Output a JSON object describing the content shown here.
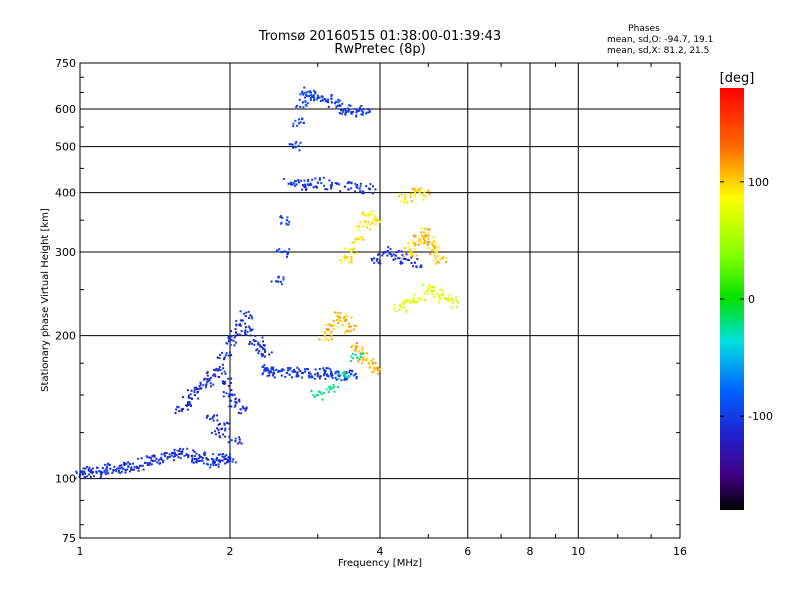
{
  "chart_data": {
    "type": "scatter",
    "title": "Tromsø 20160515 01:38:00-01:39:43",
    "subtitle": "RwPretec (8p)",
    "xlabel": "Frequency [MHz]",
    "ylabel": "Stationary phase Virtual Height [km]",
    "x_scale": "log",
    "y_scale": "log",
    "xlim": [
      1,
      16
    ],
    "ylim": [
      75,
      750
    ],
    "x_ticks": [
      1,
      2,
      4,
      6,
      8,
      10,
      16
    ],
    "y_ticks": [
      75,
      100,
      200,
      300,
      400,
      500,
      600,
      750
    ],
    "grid": true,
    "stats_title": "Phases",
    "stats_lines": [
      "mean, sd,O: -94.7, 19.1",
      "mean, sd,X:  81.2, 21.5"
    ],
    "colorbar": {
      "label": "[deg]",
      "range": [
        -180,
        180
      ],
      "ticks": [
        100,
        0,
        -100
      ]
    },
    "series": [
      {
        "color_value": -105,
        "x": [
          1.0,
          1.02,
          1.05,
          1.08,
          1.12,
          1.15,
          1.18,
          1.22,
          1.25,
          1.3,
          1.35,
          1.4,
          1.45,
          1.5,
          1.55,
          1.6,
          1.65,
          1.7,
          1.75,
          1.8,
          1.85,
          1.9,
          1.95,
          2.0
        ],
        "y": [
          102,
          103,
          104,
          103,
          104,
          105,
          104,
          105,
          106,
          106,
          108,
          109,
          110,
          111,
          113,
          114,
          112,
          110,
          111,
          110,
          108,
          109,
          110,
          110
        ]
      },
      {
        "color_value": -110,
        "x": [
          1.6,
          1.65,
          1.7,
          1.75,
          1.8,
          1.85,
          1.9,
          1.95,
          2.0,
          2.05,
          2.1,
          1.9,
          1.85,
          1.95,
          2.05
        ],
        "y": [
          140,
          145,
          150,
          155,
          160,
          165,
          170,
          160,
          150,
          145,
          140,
          125,
          135,
          130,
          120
        ]
      },
      {
        "color_value": -108,
        "x": [
          1.95,
          2.0,
          2.05,
          2.1,
          2.15,
          2.2,
          2.25,
          2.3,
          2.35
        ],
        "y": [
          180,
          195,
          200,
          210,
          220,
          205,
          195,
          190,
          185
        ]
      },
      {
        "color_value": -100,
        "x": [
          2.35,
          2.4,
          2.45,
          2.5,
          2.6,
          2.7,
          2.8,
          2.9,
          3.0,
          3.1,
          3.2,
          3.3,
          3.4,
          3.5
        ],
        "y": [
          170,
          168,
          167,
          168,
          167,
          168,
          167,
          166,
          166,
          167,
          166,
          165,
          165,
          166
        ]
      },
      {
        "color_value": -95,
        "x": [
          2.5,
          2.55,
          2.6,
          2.65,
          2.7,
          2.75,
          2.8,
          2.85,
          2.9
        ],
        "y": [
          260,
          300,
          350,
          420,
          500,
          560,
          620,
          640,
          650
        ]
      },
      {
        "color_value": -105,
        "x": [
          2.8,
          2.9,
          3.0,
          3.2,
          3.4,
          3.6,
          3.8
        ],
        "y": [
          415,
          418,
          420,
          415,
          412,
          410,
          408
        ]
      },
      {
        "color_value": -100,
        "x": [
          3.0,
          3.1,
          3.2,
          3.3,
          3.4,
          3.5,
          3.6,
          3.7
        ],
        "y": [
          640,
          630,
          620,
          610,
          600,
          590,
          595,
          600
        ]
      },
      {
        "color_value": -110,
        "x": [
          3.95,
          4.1,
          4.3,
          4.5,
          4.7
        ],
        "y": [
          290,
          300,
          295,
          290,
          285
        ]
      },
      {
        "color_value": 110,
        "x": [
          3.1,
          3.2,
          3.3,
          3.4,
          3.5,
          3.6,
          3.7,
          3.8,
          3.9
        ],
        "y": [
          200,
          210,
          220,
          215,
          205,
          190,
          180,
          175,
          170
        ]
      },
      {
        "color_value": 105,
        "x": [
          4.6,
          4.7,
          4.8,
          4.9,
          5.0,
          5.1,
          5.2,
          5.3
        ],
        "y": [
          300,
          310,
          320,
          330,
          320,
          310,
          300,
          290
        ]
      },
      {
        "color_value": 75,
        "x": [
          4.4,
          4.6,
          4.8,
          5.0,
          5.2,
          5.4,
          5.6
        ],
        "y": [
          230,
          235,
          240,
          250,
          245,
          240,
          235
        ]
      },
      {
        "color_value": 95,
        "x": [
          3.4,
          3.5,
          3.6,
          3.7,
          3.8,
          3.9
        ],
        "y": [
          290,
          300,
          320,
          340,
          360,
          350
        ]
      },
      {
        "color_value": 100,
        "x": [
          4.5,
          4.7,
          4.9
        ],
        "y": [
          390,
          400,
          395
        ]
      },
      {
        "color_value": -20,
        "x": [
          3.0,
          3.2,
          3.4,
          3.6
        ],
        "y": [
          150,
          155,
          165,
          180
        ]
      }
    ]
  }
}
